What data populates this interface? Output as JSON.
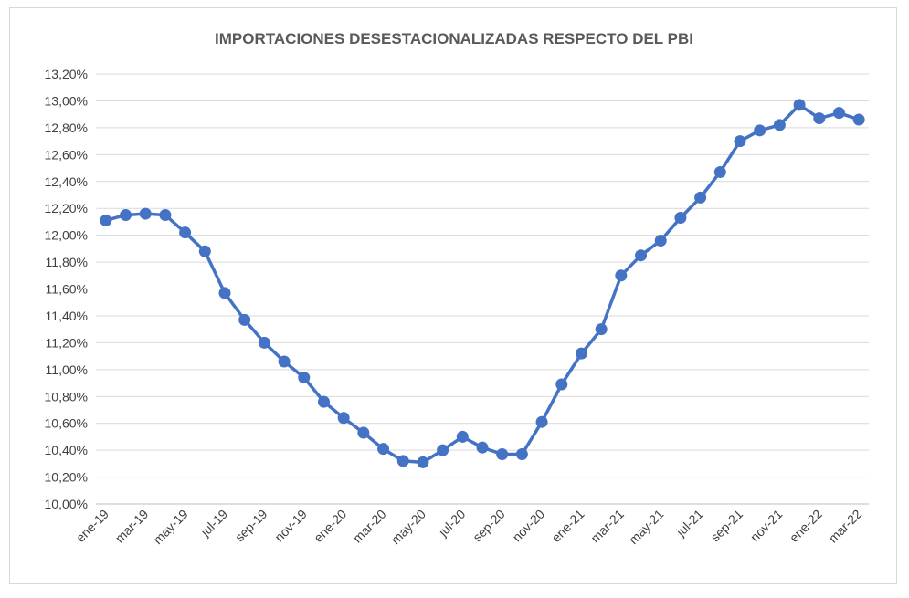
{
  "chart_data": {
    "type": "line",
    "title": "IMPORTACIONES DESESTACIONALIZADAS RESPECTO DEL PBI",
    "xlabel": "",
    "ylabel": "",
    "ylim": [
      10.0,
      13.2
    ],
    "y_ticks": [
      "10,00%",
      "10,20%",
      "10,40%",
      "10,60%",
      "10,80%",
      "11,00%",
      "11,20%",
      "11,40%",
      "11,60%",
      "11,80%",
      "12,00%",
      "12,20%",
      "12,40%",
      "12,60%",
      "12,80%",
      "13,00%",
      "13,20%"
    ],
    "x_tick_labels": [
      "ene-19",
      "mar-19",
      "may-19",
      "jul-19",
      "sep-19",
      "nov-19",
      "ene-20",
      "mar-20",
      "may-20",
      "jul-20",
      "sep-20",
      "nov-20",
      "ene-21",
      "mar-21",
      "may-21",
      "jul-21",
      "sep-21",
      "nov-21",
      "ene-22",
      "mar-22"
    ],
    "grid": true,
    "series_color": "#4472c4",
    "categories": [
      "ene-19",
      "feb-19",
      "mar-19",
      "abr-19",
      "may-19",
      "jun-19",
      "jul-19",
      "ago-19",
      "sep-19",
      "oct-19",
      "nov-19",
      "dic-19",
      "ene-20",
      "feb-20",
      "mar-20",
      "abr-20",
      "may-20",
      "jun-20",
      "jul-20",
      "ago-20",
      "sep-20",
      "oct-20",
      "nov-20",
      "dic-20",
      "ene-21",
      "feb-21",
      "mar-21",
      "abr-21",
      "may-21",
      "jun-21",
      "jul-21",
      "ago-21",
      "sep-21",
      "oct-21",
      "nov-21",
      "dic-21",
      "ene-22",
      "feb-22",
      "mar-22"
    ],
    "series": [
      {
        "values": [
          12.11,
          12.15,
          12.16,
          12.15,
          12.02,
          11.88,
          11.57,
          11.37,
          11.2,
          11.06,
          10.94,
          10.76,
          10.64,
          10.53,
          10.41,
          10.32,
          10.31,
          10.4,
          10.5,
          10.42,
          10.37,
          10.37,
          10.61,
          10.89,
          11.12,
          11.3,
          11.7,
          11.85,
          11.96,
          12.13,
          12.28,
          12.47,
          12.7,
          12.78,
          12.82,
          12.97,
          12.87,
          12.91,
          12.86
        ]
      }
    ]
  }
}
